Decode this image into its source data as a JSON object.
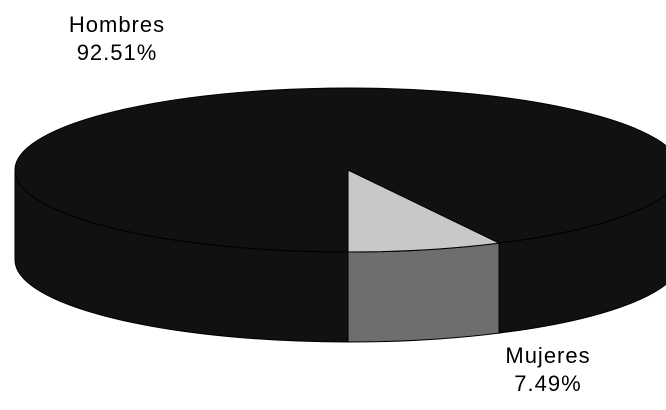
{
  "chart_data": {
    "type": "pie",
    "style": "3d",
    "categories": [
      "Hombres",
      "Mujeres"
    ],
    "values": [
      92.51,
      7.49
    ],
    "value_labels": [
      "92.51%",
      "7.49%"
    ],
    "colors": {
      "Hombres": {
        "top": "#111111",
        "side": "#111111"
      },
      "Mujeres": {
        "top": "#c8c8c8",
        "side": "#6e6e6e"
      }
    },
    "title": "",
    "legend": "none"
  }
}
